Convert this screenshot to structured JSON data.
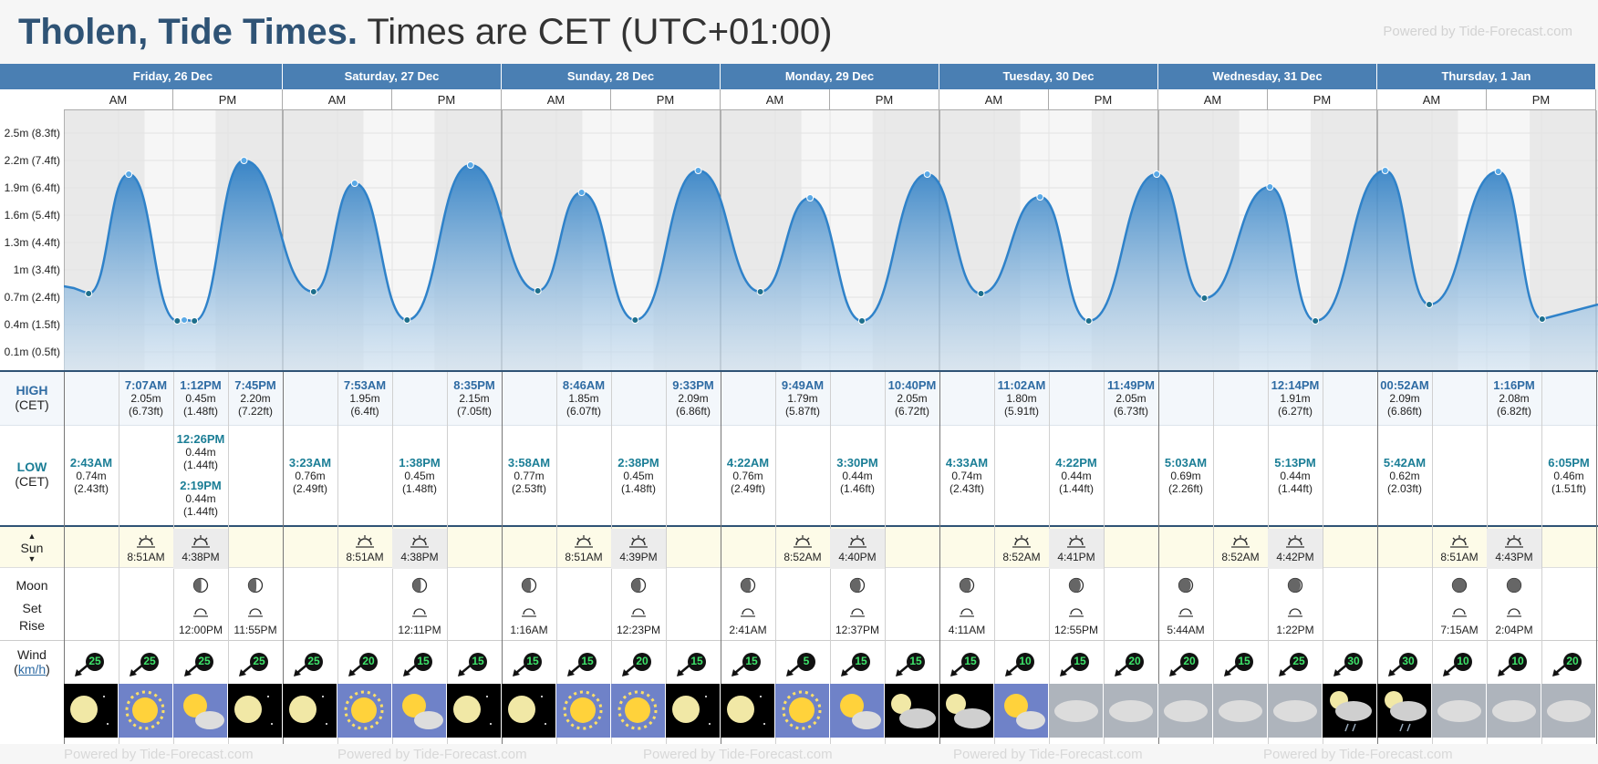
{
  "header": {
    "place": "Tholen, Tide Times.",
    "timezone": "Times are CET (UTC+01:00)",
    "powered": "Powered by Tide-Forecast.com",
    "powered_bottom": "Powered by Tide-Forecast.com"
  },
  "days": [
    {
      "label": "Friday, 26 Dec"
    },
    {
      "label": "Saturday, 27 Dec"
    },
    {
      "label": "Sunday, 28 Dec"
    },
    {
      "label": "Monday, 29 Dec"
    },
    {
      "label": "Tuesday, 30 Dec"
    },
    {
      "label": "Wednesday, 31 Dec"
    },
    {
      "label": "Thursday, 1 Jan"
    }
  ],
  "ampm": {
    "am": "AM",
    "pm": "PM"
  },
  "y_axis": [
    "2.5m (8.3ft)",
    "2.2m (7.4ft)",
    "1.9m (6.4ft)",
    "1.6m (5.4ft)",
    "1.3m (4.4ft)",
    "1m (3.4ft)",
    "0.7m (2.4ft)",
    "0.4m (1.5ft)",
    "0.1m (0.5ft)"
  ],
  "rows": {
    "high": "HIGH",
    "high_tz": "(CET)",
    "low": "LOW",
    "low_tz": "(CET)",
    "sun": "Sun",
    "moon": "Moon",
    "set": "Set",
    "rise": "Rise",
    "wind": "Wind",
    "wind_unit": "km/h"
  },
  "highs": [
    {
      "time": "7:07AM",
      "m": "2.05m",
      "ft": "(6.73ft)"
    },
    {
      "time": "1:12PM",
      "m": "0.45m",
      "ft": "(1.48ft)"
    },
    {
      "time": "7:45PM",
      "m": "2.20m",
      "ft": "(7.22ft)"
    },
    {
      "time": "7:53AM",
      "m": "1.95m",
      "ft": "(6.4ft)"
    },
    {
      "time": "8:35PM",
      "m": "2.15m",
      "ft": "(7.05ft)"
    },
    {
      "time": "8:46AM",
      "m": "1.85m",
      "ft": "(6.07ft)"
    },
    {
      "time": "9:33PM",
      "m": "2.09m",
      "ft": "(6.86ft)"
    },
    {
      "time": "9:49AM",
      "m": "1.79m",
      "ft": "(5.87ft)"
    },
    {
      "time": "10:40PM",
      "m": "2.05m",
      "ft": "(6.72ft)"
    },
    {
      "time": "11:02AM",
      "m": "1.80m",
      "ft": "(5.91ft)"
    },
    {
      "time": "11:49PM",
      "m": "2.05m",
      "ft": "(6.73ft)"
    },
    {
      "time": "12:14PM",
      "m": "1.91m",
      "ft": "(6.27ft)"
    },
    {
      "time": "00:52AM",
      "m": "2.09m",
      "ft": "(6.86ft)"
    },
    {
      "time": "1:16PM",
      "m": "2.08m",
      "ft": "(6.82ft)"
    }
  ],
  "lows": [
    {
      "time": "2:43AM",
      "m": "0.74m",
      "ft": "(2.43ft)"
    },
    {
      "time": "12:26PM",
      "m": "0.44m",
      "ft": "(1.44ft)"
    },
    {
      "time": "2:19PM",
      "m": "0.44m",
      "ft": "(1.44ft)"
    },
    {
      "time": "3:23AM",
      "m": "0.76m",
      "ft": "(2.49ft)"
    },
    {
      "time": "1:38PM",
      "m": "0.45m",
      "ft": "(1.48ft)"
    },
    {
      "time": "3:58AM",
      "m": "0.77m",
      "ft": "(2.53ft)"
    },
    {
      "time": "2:38PM",
      "m": "0.45m",
      "ft": "(1.48ft)"
    },
    {
      "time": "4:22AM",
      "m": "0.76m",
      "ft": "(2.49ft)"
    },
    {
      "time": "3:30PM",
      "m": "0.44m",
      "ft": "(1.46ft)"
    },
    {
      "time": "4:33AM",
      "m": "0.74m",
      "ft": "(2.43ft)"
    },
    {
      "time": "4:22PM",
      "m": "0.44m",
      "ft": "(1.44ft)"
    },
    {
      "time": "5:03AM",
      "m": "0.69m",
      "ft": "(2.26ft)"
    },
    {
      "time": "5:13PM",
      "m": "0.44m",
      "ft": "(1.44ft)"
    },
    {
      "time": "5:42AM",
      "m": "0.62m",
      "ft": "(2.03ft)"
    },
    {
      "time": "6:05PM",
      "m": "0.46m",
      "ft": "(1.51ft)"
    }
  ],
  "sun": [
    {
      "rise": "8:51AM",
      "set": "4:38PM"
    },
    {
      "rise": "8:51AM",
      "set": "4:38PM"
    },
    {
      "rise": "8:51AM",
      "set": "4:39PM"
    },
    {
      "rise": "8:52AM",
      "set": "4:40PM"
    },
    {
      "rise": "8:52AM",
      "set": "4:41PM"
    },
    {
      "rise": "8:52AM",
      "set": "4:42PM"
    },
    {
      "rise": "8:51AM",
      "set": "4:43PM"
    }
  ],
  "moon_times": [
    "12:00PM",
    "11:55PM",
    "12:11PM",
    "1:16AM",
    "12:23PM",
    "2:41AM",
    "12:37PM",
    "4:11AM",
    "12:55PM",
    "5:44AM",
    "1:22PM",
    "7:15AM",
    "2:04PM"
  ],
  "wind": [
    "25",
    "25",
    "25",
    "25",
    "25",
    "20",
    "15",
    "15",
    "15",
    "15",
    "20",
    "15",
    "15",
    "5",
    "15",
    "15",
    "15",
    "10",
    "15",
    "20",
    "20",
    "15",
    "25",
    "30",
    "30",
    "10",
    "10",
    "20"
  ],
  "weather_icons": [
    "night-moon",
    "sunny",
    "partly-cloudy",
    "night-moon",
    "night-moon",
    "sunny",
    "partly-cloudy",
    "night-moon",
    "night-moon",
    "sunny",
    "sunny",
    "night-moon",
    "night-moon",
    "sunny",
    "partly-cloudy",
    "night-cloudy",
    "night-cloudy",
    "partly-cloudy",
    "cloudy",
    "cloudy",
    "cloudy",
    "cloudy",
    "cloudy",
    "night-rain",
    "night-rain",
    "cloudy",
    "cloudy",
    "cloudy"
  ]
}
